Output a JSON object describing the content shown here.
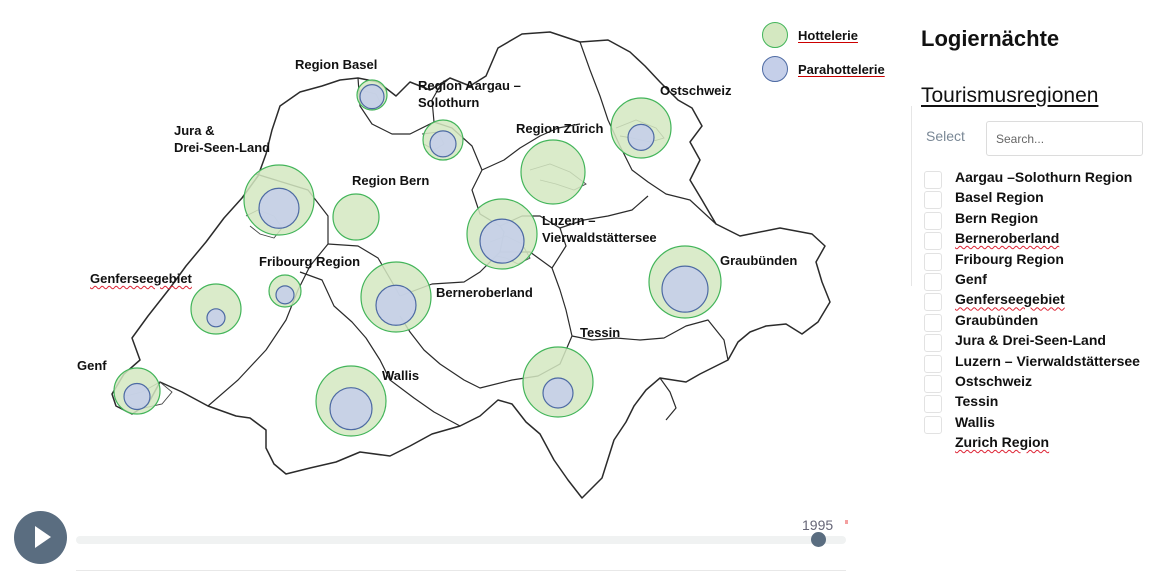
{
  "legend": {
    "hotel": {
      "label": "Hottelerie",
      "color": "#d4e8c1",
      "stroke": "#43b55a"
    },
    "para": {
      "label": "Parahottelerie",
      "color": "#c5cfe9",
      "stroke": "#4d6aa3"
    }
  },
  "panel": {
    "title": "Logiernächte",
    "subtitle": "Tourismusregionen",
    "select_label": "Select",
    "search_placeholder": "Search...",
    "regions": [
      "Aargau –Solothurn Region",
      "Basel Region",
      "Bern Region",
      "Berneroberland",
      "Fribourg Region",
      "Genf",
      "Genferseegebiet",
      "Graubünden",
      "Jura & Drei-Seen-Land",
      "Luzern – Vierwaldstättersee",
      "Ostschweiz",
      "Tessin",
      "Wallis",
      "Zurich Region"
    ]
  },
  "map": {
    "labels": {
      "basel": "Region Basel",
      "aargau": "Region Aargau –\nSolothurn",
      "zurich": "Region Zürich",
      "ostschweiz": "Ostschweiz",
      "jura": "Jura &\nDrei-Seen-Land",
      "bern": "Region Bern",
      "luzern": "Luzern –\nVierwaldstättersee",
      "graubuenden": "Graubünden",
      "fribourg": "Fribourg Region",
      "genferseegebiet": "Genferseegebiet",
      "berneroberland": "Berneroberland",
      "tessin": "Tessin",
      "genf": "Genf",
      "wallis": "Wallis"
    }
  },
  "timeline": {
    "year": "1995",
    "progress": 0.96,
    "play_icon": "play-icon"
  }
}
